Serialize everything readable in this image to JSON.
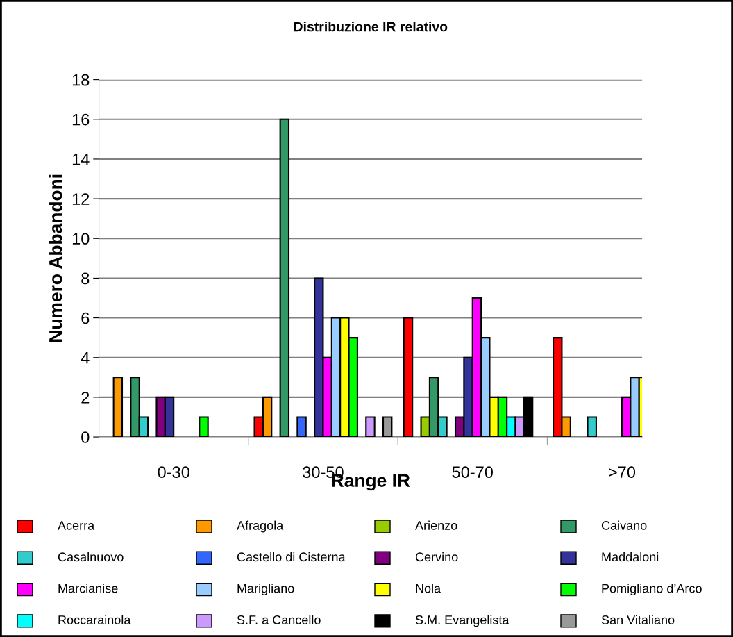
{
  "chart_data": {
    "type": "bar",
    "title": "Distribuzione IR relativo",
    "xlabel": "Range IR",
    "ylabel": "Numero Abbandoni",
    "categories": [
      "0-30",
      "30-50",
      "50-70",
      ">70"
    ],
    "ylim": [
      0,
      18
    ],
    "yticks": [
      0,
      2,
      4,
      6,
      8,
      10,
      12,
      14,
      16,
      18
    ],
    "grid": "y",
    "legend": "bottom",
    "series": [
      {
        "name": "Acerra",
        "color": "#ff0000",
        "values": [
          0,
          1,
          6,
          5
        ]
      },
      {
        "name": "Afragola",
        "color": "#ff9900",
        "values": [
          3,
          2,
          0,
          1
        ]
      },
      {
        "name": "Arienzo",
        "color": "#99cc00",
        "values": [
          0,
          0,
          1,
          0
        ]
      },
      {
        "name": "Caivano",
        "color": "#339966",
        "values": [
          3,
          16,
          3,
          0
        ]
      },
      {
        "name": "Casalnuovo",
        "color": "#33cccc",
        "values": [
          1,
          0,
          1,
          1
        ]
      },
      {
        "name": "Castello di Cisterna",
        "color": "#3366ff",
        "values": [
          0,
          1,
          0,
          0
        ]
      },
      {
        "name": "Cervino",
        "color": "#800080",
        "values": [
          2,
          0,
          1,
          0
        ]
      },
      {
        "name": "Maddaloni",
        "color": "#333399",
        "values": [
          2,
          8,
          4,
          0
        ]
      },
      {
        "name": "Marcianise",
        "color": "#ff00ff",
        "values": [
          0,
          4,
          7,
          2
        ]
      },
      {
        "name": "Marigliano",
        "color": "#99ccff",
        "values": [
          0,
          6,
          5,
          3
        ]
      },
      {
        "name": "Nola",
        "color": "#ffff00",
        "values": [
          0,
          6,
          2,
          3
        ]
      },
      {
        "name": "Pomigliano d’Arco",
        "color": "#00ff00",
        "values": [
          1,
          5,
          2,
          null
        ]
      },
      {
        "name": "Roccarainola",
        "color": "#00ffff",
        "values": [
          0,
          0,
          1,
          null
        ]
      },
      {
        "name": "S.F. a Cancello",
        "color": "#cc99ff",
        "values": [
          0,
          1,
          1,
          null
        ]
      },
      {
        "name": "S.M. Evangelista",
        "color": "#000000",
        "values": [
          0,
          0,
          2,
          null
        ]
      },
      {
        "name": "San Vitaliano",
        "color": "#999999",
        "values": [
          0,
          1,
          0,
          null
        ]
      }
    ]
  }
}
